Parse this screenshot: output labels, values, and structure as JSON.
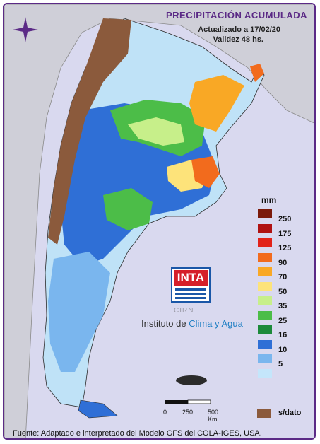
{
  "header": {
    "title": "PRECIPITACIÓN ACUMULADA",
    "updated": "Actualizado a 17/02/20",
    "validity": "Validez 48 hs."
  },
  "legend": {
    "unit": "mm",
    "entries": [
      {
        "label": "250",
        "color": "#7b1a0a"
      },
      {
        "label": "175",
        "color": "#b01212"
      },
      {
        "label": "125",
        "color": "#e2231a"
      },
      {
        "label": "90",
        "color": "#f26b1d"
      },
      {
        "label": "70",
        "color": "#f9a825"
      },
      {
        "label": "50",
        "color": "#fde37a"
      },
      {
        "label": "35",
        "color": "#c7ef8a"
      },
      {
        "label": "25",
        "color": "#4cbd48"
      },
      {
        "label": "16",
        "color": "#1c8a3a"
      },
      {
        "label": "10",
        "color": "#2f6fd6"
      },
      {
        "label": "5",
        "color": "#7ab6ee"
      },
      {
        "label": "",
        "color": "#c4e6fb"
      }
    ],
    "no_data_label": "s/dato",
    "no_data_color": "#8b5a3c"
  },
  "logo": {
    "brand": "INTA",
    "sub": "CIRN",
    "institute_prefix": "Instituto de ",
    "institute_accent": "Clima y Agua"
  },
  "scale_bar": {
    "labels": [
      "0",
      "250",
      "500 Km"
    ]
  },
  "footer": {
    "source": "Fuente: Adaptado e interpretado del Modelo GFS del COLA-IGES, USA."
  },
  "icons": {
    "compass": "compass-rose-icon",
    "logo": "inta-logo-icon"
  }
}
